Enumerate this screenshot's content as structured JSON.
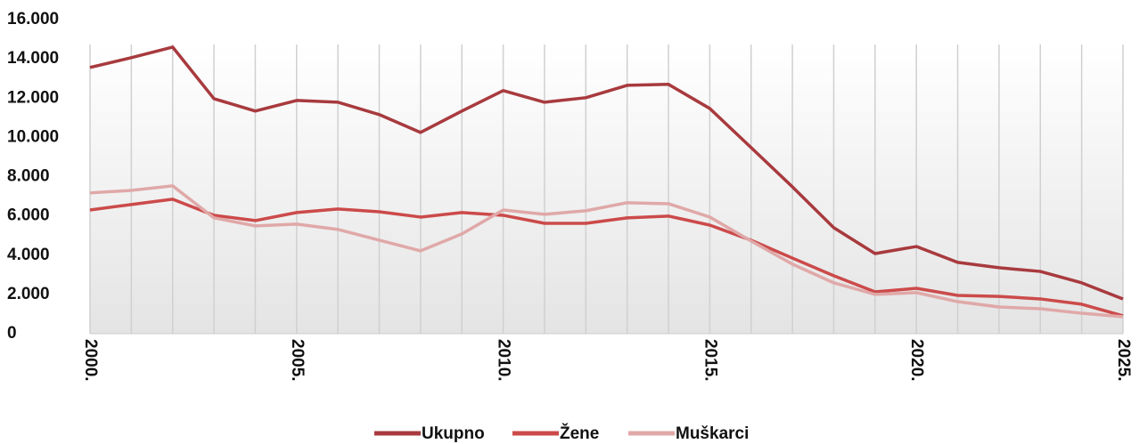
{
  "chart_data": {
    "type": "line",
    "x": [
      2000,
      2001,
      2002,
      2003,
      2004,
      2005,
      2006,
      2007,
      2008,
      2009,
      2010,
      2011,
      2012,
      2013,
      2014,
      2015,
      2016,
      2017,
      2018,
      2019,
      2020,
      2021,
      2022,
      2023,
      2024,
      2025
    ],
    "series": [
      {
        "name": "Ukupno",
        "color": "#a83a3e",
        "values": [
          13560,
          14060,
          14600,
          11970,
          11340,
          11880,
          11790,
          11160,
          10250,
          11340,
          12380,
          11790,
          12020,
          12650,
          12700,
          11470,
          9480,
          7480,
          5400,
          4080,
          4440,
          3630,
          3360,
          3170,
          2590,
          1770
        ]
      },
      {
        "name": "Žene",
        "color": "#cc4a4a",
        "values": [
          6300,
          6580,
          6850,
          6030,
          5760,
          6170,
          6350,
          6210,
          5940,
          6170,
          6030,
          5620,
          5620,
          5900,
          5990,
          5530,
          4760,
          3850,
          2950,
          2130,
          2310,
          1950,
          1900,
          1770,
          1500,
          910
        ]
      },
      {
        "name": "Muškarci",
        "color": "#e0a8a8",
        "values": [
          7170,
          7300,
          7530,
          5900,
          5490,
          5580,
          5310,
          4760,
          4220,
          5080,
          6300,
          6080,
          6260,
          6670,
          6620,
          5940,
          4720,
          3540,
          2590,
          2000,
          2090,
          1630,
          1360,
          1270,
          1040,
          860
        ]
      }
    ],
    "xlim": [
      2000,
      2025
    ],
    "xticks": [
      {
        "value": 2000,
        "label": "2000."
      },
      {
        "value": 2005,
        "label": "2005."
      },
      {
        "value": 2010,
        "label": "2010."
      },
      {
        "value": 2015,
        "label": "2015."
      },
      {
        "value": 2020,
        "label": "2020."
      },
      {
        "value": 2025,
        "label": "2025."
      }
    ],
    "ylim": [
      0,
      16000
    ],
    "yticks": [
      0,
      {
        "value": 2000,
        "label": "2.000"
      },
      {
        "value": 4000,
        "label": "4.000"
      },
      {
        "value": 6000,
        "label": "6.000"
      },
      {
        "value": 8000,
        "label": "8.000"
      },
      {
        "value": 10000,
        "label": "10.000"
      },
      {
        "value": 12000,
        "label": "12.000"
      },
      {
        "value": 14000,
        "label": "14.000"
      },
      {
        "value": 16000,
        "label": "16.000"
      }
    ],
    "legend": "bottom"
  }
}
